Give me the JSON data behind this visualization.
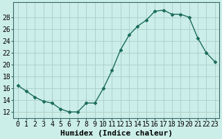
{
  "x": [
    0,
    1,
    2,
    3,
    4,
    5,
    6,
    7,
    8,
    9,
    10,
    11,
    12,
    13,
    14,
    15,
    16,
    17,
    18,
    19,
    20,
    21,
    22,
    23
  ],
  "y": [
    16.5,
    15.5,
    14.5,
    13.8,
    13.5,
    12.5,
    12.0,
    12.0,
    13.5,
    13.5,
    16.0,
    19.0,
    22.5,
    25.0,
    26.5,
    27.5,
    29.0,
    29.2,
    28.5,
    28.5,
    28.0,
    24.5,
    22.0,
    20.5
  ],
  "line_color": "#1a6b5a",
  "marker": "D",
  "marker_size": 2.5,
  "bg_color": "#cceee8",
  "grid_color": "#aacccc",
  "xlabel": "Humidex (Indice chaleur)",
  "xlabel_fontsize": 8,
  "ylabel_ticks": [
    12,
    14,
    16,
    18,
    20,
    22,
    24,
    26,
    28
  ],
  "ylim": [
    11.0,
    30.5
  ],
  "xlim": [
    -0.5,
    23.5
  ],
  "xtick_labels": [
    "0",
    "1",
    "2",
    "3",
    "4",
    "5",
    "6",
    "7",
    "8",
    "9",
    "10",
    "11",
    "12",
    "13",
    "14",
    "15",
    "16",
    "17",
    "18",
    "19",
    "20",
    "21",
    "22",
    "23"
  ],
  "tick_fontsize": 7,
  "spine_color": "#336666",
  "line_width": 1.0
}
